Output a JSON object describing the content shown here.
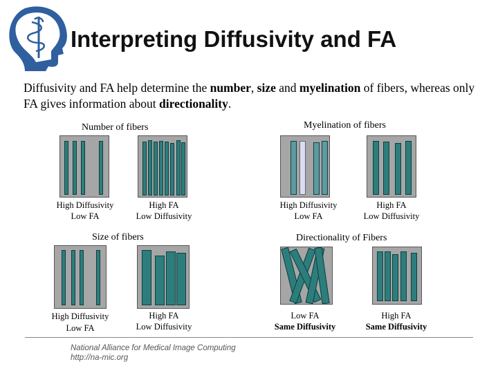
{
  "title": "Interpreting Diffusivity and FA",
  "intro": {
    "p1": "Diffusivity and FA help determine the ",
    "b1": "number",
    "p2": ", ",
    "b2": "size",
    "p3": " and ",
    "b3": "myelination",
    "p4": " of fibers, whereas only FA gives information about ",
    "b4": "directionality",
    "p5": "."
  },
  "sections": {
    "number": {
      "title": "Number of fibers",
      "left": {
        "line1": "High Diffusivity",
        "line2": "Low FA"
      },
      "right": {
        "line1": "High FA",
        "line2": "Low Diffusivity"
      }
    },
    "myelination": {
      "title": "Myelination of fibers",
      "left": {
        "line1": "High Diffusivity",
        "line2": "Low FA"
      },
      "right": {
        "line1": "High FA",
        "line2": "Low Diffusivity"
      }
    },
    "size": {
      "title": "Size of fibers",
      "left": {
        "line1": "High Diffusivity",
        "line2": "Low FA"
      },
      "right": {
        "line1": "High FA",
        "line2": "Low Diffusivity"
      }
    },
    "directionality": {
      "title": "Directionality of Fibers",
      "left": {
        "line1": "Low FA",
        "line2": "Same Diffusivity"
      },
      "right": {
        "line1": "High FA",
        "line2": "Same Diffusivity"
      }
    }
  },
  "colors": {
    "fiber": "#2e7d7d",
    "fiber_light": "#dcdcf0",
    "box": "#a6a6a6",
    "logo": "#2f5f9f"
  },
  "footer": {
    "line1": "National Alliance for Medical Image Computing",
    "line2": "http://na-mic.org"
  }
}
